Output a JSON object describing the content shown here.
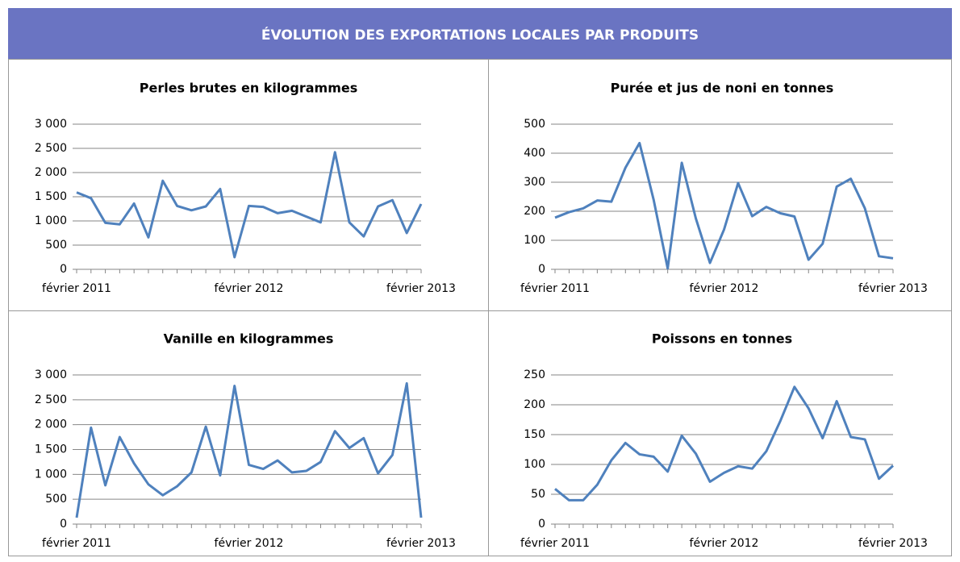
{
  "header": {
    "title": "ÉVOLUTION DES EXPORTATIONS LOCALES PAR PRODUITS"
  },
  "chart_data": [
    {
      "type": "line",
      "title": "Perles brutes en kilogrammes",
      "color": "#4f81bd",
      "categories": [
        "février 2011",
        null,
        null,
        null,
        null,
        null,
        null,
        null,
        null,
        null,
        null,
        null,
        "février 2012",
        null,
        null,
        null,
        null,
        null,
        null,
        null,
        null,
        null,
        null,
        null,
        "février 2013"
      ],
      "values": [
        1590,
        1470,
        960,
        930,
        1360,
        660,
        1830,
        1310,
        1220,
        1300,
        1660,
        250,
        1310,
        1290,
        1160,
        1210,
        1090,
        970,
        2420,
        970,
        680,
        1300,
        1430,
        750,
        1350
      ],
      "ylim": [
        0,
        3000
      ],
      "yticks": [
        0,
        500,
        {
          "value": 1000,
          "label": "1 000"
        },
        {
          "value": 1500,
          "label": "1 500"
        },
        {
          "value": 2000,
          "label": "2 000"
        },
        {
          "value": 2500,
          "label": "2 500"
        },
        {
          "value": 3000,
          "label": "3 000"
        }
      ],
      "grid": true
    },
    {
      "type": "line",
      "title": "Purée et jus de noni en tonnes",
      "color": "#4f81bd",
      "categories": [
        "février 2011",
        null,
        null,
        null,
        null,
        null,
        null,
        null,
        null,
        null,
        null,
        null,
        "février 2012",
        null,
        null,
        null,
        null,
        null,
        null,
        null,
        null,
        null,
        null,
        null,
        "février 2013"
      ],
      "values": [
        178,
        197,
        210,
        237,
        233,
        350,
        435,
        240,
        3,
        367,
        175,
        22,
        137,
        297,
        183,
        215,
        193,
        182,
        33,
        88,
        285,
        312,
        210,
        45,
        38
      ],
      "ylim": [
        0,
        500
      ],
      "yticks": [
        0,
        100,
        200,
        300,
        400,
        500
      ],
      "grid": true
    },
    {
      "type": "line",
      "title": "Vanille en kilogrammes",
      "color": "#4f81bd",
      "categories": [
        "février 2011",
        null,
        null,
        null,
        null,
        null,
        null,
        null,
        null,
        null,
        null,
        null,
        "février 2012",
        null,
        null,
        null,
        null,
        null,
        null,
        null,
        null,
        null,
        null,
        null,
        "février 2013"
      ],
      "values": [
        130,
        1940,
        780,
        1750,
        1220,
        800,
        580,
        760,
        1040,
        1960,
        980,
        2780,
        1190,
        1110,
        1280,
        1040,
        1070,
        1250,
        1870,
        1530,
        1730,
        1020,
        1390,
        2830,
        130
      ],
      "ylim": [
        0,
        3000
      ],
      "yticks": [
        0,
        500,
        {
          "value": 1000,
          "label": "1 000"
        },
        {
          "value": 1500,
          "label": "1 500"
        },
        {
          "value": 2000,
          "label": "2 000"
        },
        {
          "value": 2500,
          "label": "2 500"
        },
        {
          "value": 3000,
          "label": "3 000"
        }
      ],
      "grid": true
    },
    {
      "type": "line",
      "title": "Poissons en tonnes",
      "color": "#4f81bd",
      "categories": [
        "février 2011",
        null,
        null,
        null,
        null,
        null,
        null,
        null,
        null,
        null,
        null,
        null,
        "février 2012",
        null,
        null,
        null,
        null,
        null,
        null,
        null,
        null,
        null,
        null,
        null,
        "février 2013"
      ],
      "values": [
        59,
        40,
        40,
        66,
        107,
        136,
        117,
        113,
        88,
        148,
        118,
        71,
        86,
        97,
        93,
        122,
        173,
        230,
        194,
        144,
        206,
        146,
        142,
        76,
        98
      ],
      "ylim": [
        0,
        250
      ],
      "yticks": [
        0,
        50,
        100,
        150,
        200,
        250
      ],
      "grid": true
    }
  ]
}
